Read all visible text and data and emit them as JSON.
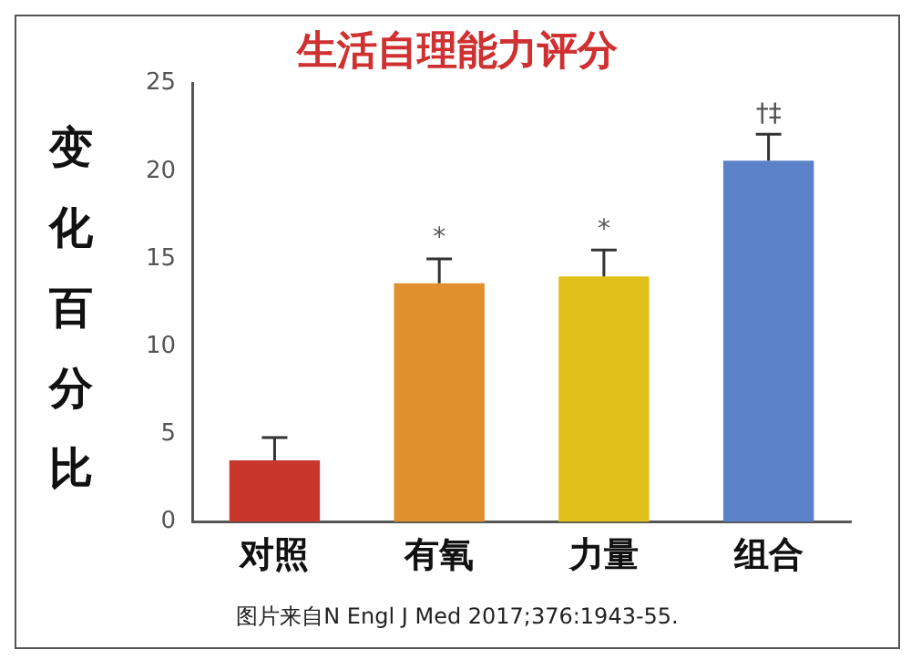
{
  "chart_data": {
    "type": "bar",
    "title": "生活自理能力评分",
    "ylabel": "变化百分比",
    "categories": [
      "对照",
      "有氧",
      "力量",
      "组合"
    ],
    "values": [
      3.5,
      13.6,
      14.0,
      20.6
    ],
    "colors": [
      "#c9372c",
      "#e0902c",
      "#e2c01a",
      "#5b82c8"
    ],
    "errors": [
      [
        3.5,
        4.8
      ],
      [
        13.6,
        15.0
      ],
      [
        14.0,
        15.5
      ],
      [
        20.6,
        22.1
      ]
    ],
    "ylim": [
      0,
      25
    ],
    "yticks": [
      0,
      5,
      10,
      15,
      20,
      25
    ],
    "grid": false,
    "legend": false,
    "annotations": [
      {
        "text": "*",
        "x": "有氧",
        "y": 15.0
      },
      {
        "text": "*",
        "x": "力量",
        "y": 15.5
      },
      {
        "text": "†‡",
        "x": "组合",
        "y": 22.1
      },
      "图片来自N Engl J Med 2017;376:1943-55."
    ]
  }
}
